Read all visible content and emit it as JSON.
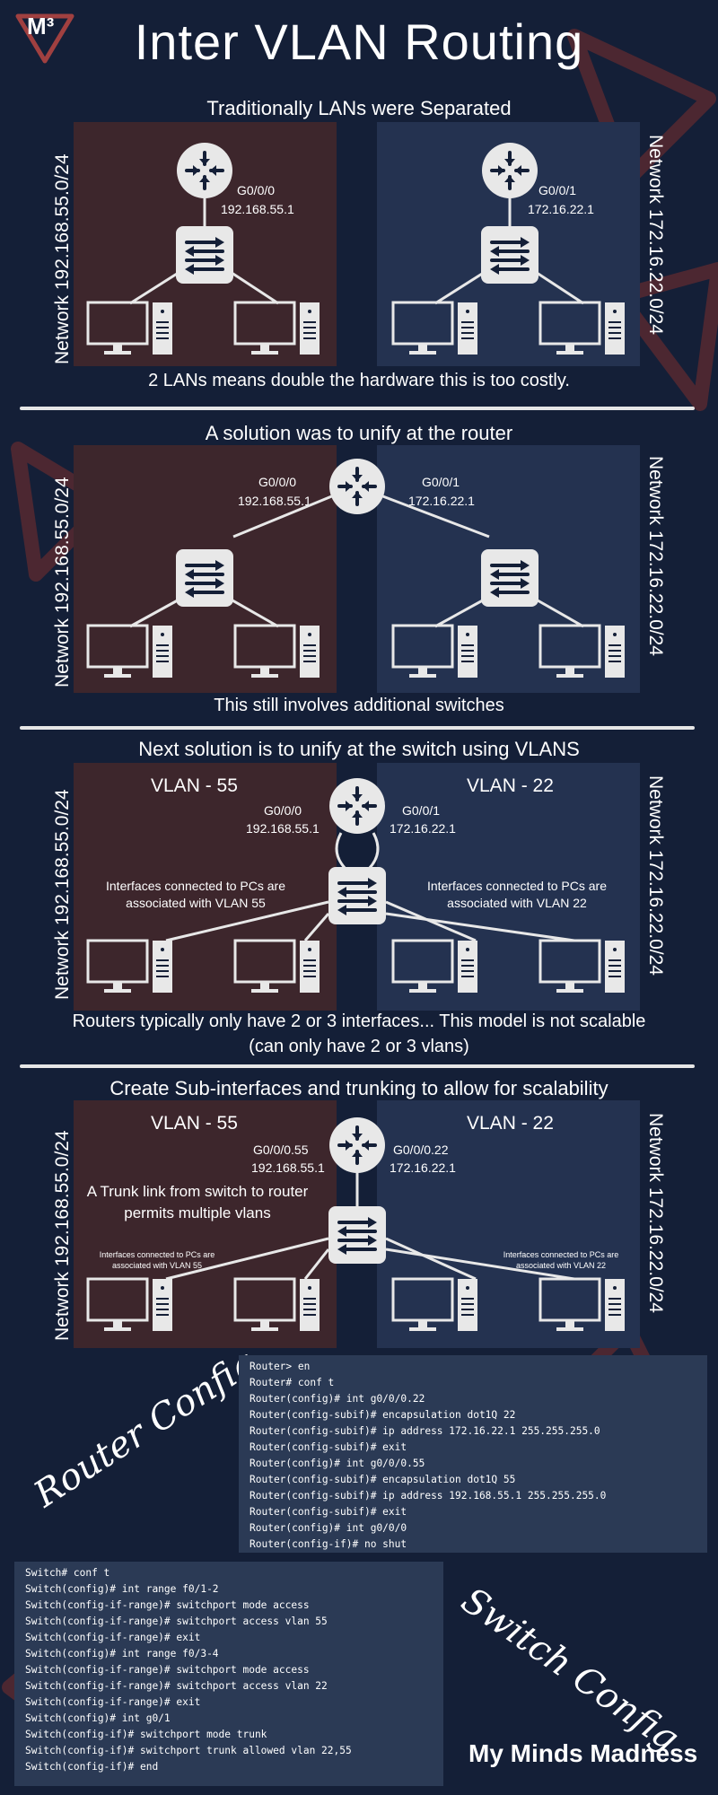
{
  "title": "Inter VLAN Routing",
  "brand": "My Minds Madness",
  "logo": "M³",
  "colors": {
    "background": "#141f37",
    "red_panel": "#3d262c",
    "blue_panel": "#243250",
    "code_bg": "#2b3a55"
  },
  "sections": [
    {
      "heading": "Traditionally LANs were Separated",
      "left_network": "Network 192.168.55.0/24",
      "right_network": "Network 172.16.22.0/24",
      "left_if": "G0/0/0",
      "left_ip": "192.168.55.1",
      "right_if": "G0/0/1",
      "right_ip": "172.16.22.1",
      "caption": "2 LANs means double the hardware this is too costly."
    },
    {
      "heading": "A solution was to unify at the router",
      "left_network": "Network 192.168.55.0/24",
      "right_network": "Network 172.16.22.0/24",
      "left_if": "G0/0/0",
      "left_ip": "192.168.55.1",
      "right_if": "G0/0/1",
      "right_ip": "172.16.22.1",
      "caption": "This still involves additional  switches"
    },
    {
      "heading": "Next solution is to unify at the switch using VLANS",
      "left_network": "Network 192.168.55.0/24",
      "right_network": "Network 172.16.22.0/24",
      "left_vlan": "VLAN - 55",
      "right_vlan": "VLAN - 22",
      "left_if": "G0/0/0",
      "left_ip": "192.168.55.1",
      "right_if": "G0/0/1",
      "right_ip": "172.16.22.1",
      "left_note": "Interfaces connected to PCs are associated with VLAN 55",
      "right_note": "Interfaces connected to PCs are associated with VLAN 22",
      "caption_line1": "Routers typically only have 2 or 3 interfaces... This model is not scalable",
      "caption_line2": "(can only have 2 or 3 vlans)"
    },
    {
      "heading": "Create Sub-interfaces and trunking to allow for scalability",
      "left_network": "Network 192.168.55.0/24",
      "right_network": "Network 172.16.22.0/24",
      "left_vlan": "VLAN - 55",
      "right_vlan": "VLAN - 22",
      "left_if": "G0/0/0.55",
      "left_ip": "192.168.55.1",
      "right_if": "G0/0/0.22",
      "right_ip": "172.16.22.1",
      "trunk_note": "A Trunk link from switch to router permits multiple vlans",
      "left_note": "Interfaces connected to PCs are associated with VLAN 55",
      "right_note": "Interfaces connected to PCs are associated with VLAN 22"
    }
  ],
  "router_config": {
    "label": "Router Config",
    "lines": [
      "Router> en",
      "Router# conf t",
      "Router(config)# int g0/0/0.22",
      "Router(config-subif)# encapsulation dot1Q 22",
      "Router(config-subif)# ip address 172.16.22.1 255.255.255.0",
      "Router(config-subif)# exit",
      "Router(config)# int g0/0/0.55",
      "Router(config-subif)# encapsulation dot1Q 55",
      "Router(config-subif)# ip address 192.168.55.1 255.255.255.0",
      "Router(config-subif)# exit",
      "Router(config)# int g0/0/0",
      "Router(config-if)# no shut"
    ]
  },
  "switch_config": {
    "label": "Switch Config",
    "lines": [
      "Switch# conf t",
      "Switch(config)# int range f0/1-2",
      "Switch(config-if-range)# switchport mode access",
      "Switch(config-if-range)# switchport access vlan 55",
      "Switch(config-if-range)# exit",
      "Switch(config)# int range f0/3-4",
      "Switch(config-if-range)# switchport mode access",
      "Switch(config-if-range)# switchport access vlan 22",
      "Switch(config-if-range)# exit",
      "Switch(config)# int g0/1",
      "Switch(config-if)# switchport mode trunk",
      "Switch(config-if)# switchport trunk allowed vlan 22,55",
      "Switch(config-if)# end"
    ]
  }
}
